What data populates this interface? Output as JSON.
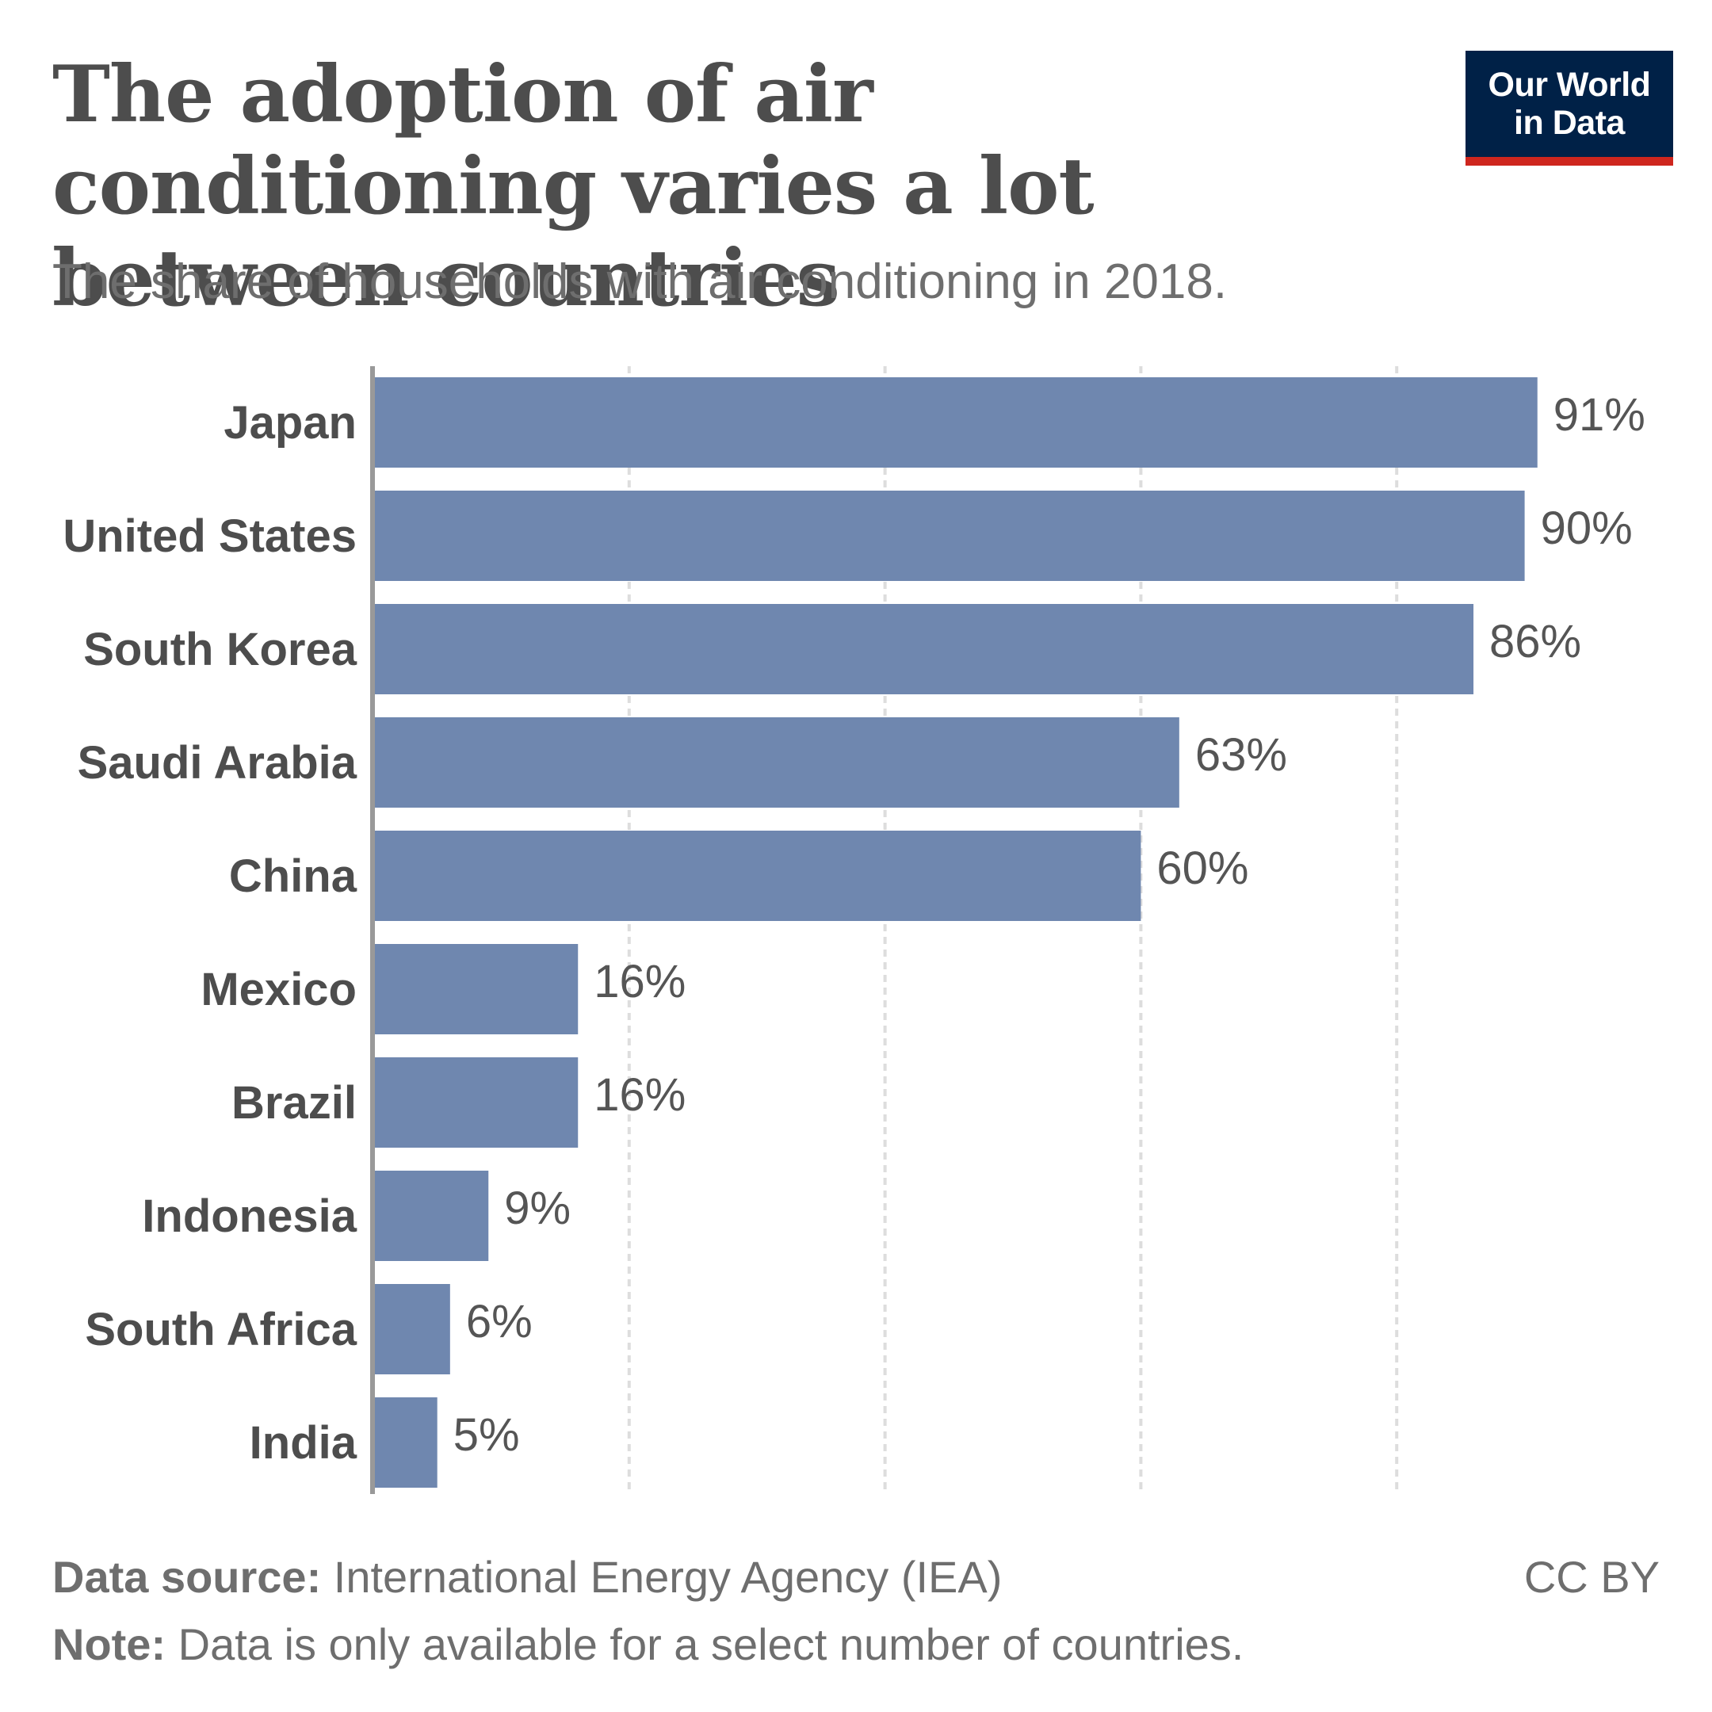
{
  "header": {
    "title": "The adoption of air conditioning varies a lot between countries",
    "subtitle": "The share of households with air conditioning in 2018."
  },
  "logo": {
    "text": "Our World\nin Data",
    "background_color": "#002147",
    "stripe_color": "#ce261e"
  },
  "chart_data": {
    "type": "bar",
    "orientation": "horizontal",
    "categories": [
      "Japan",
      "United States",
      "South Korea",
      "Saudi Arabia",
      "China",
      "Mexico",
      "Brazil",
      "Indonesia",
      "South Africa",
      "India"
    ],
    "values": [
      91,
      90,
      86,
      63,
      60,
      16,
      16,
      9,
      6,
      5
    ],
    "value_labels": [
      "91%",
      "90%",
      "86%",
      "63%",
      "60%",
      "16%",
      "16%",
      "9%",
      "6%",
      "5%"
    ],
    "unit": "%",
    "xlim": [
      0,
      100
    ],
    "grid": true,
    "bar_color": "#6f87af"
  },
  "footer": {
    "source_label": "Data source:",
    "source_text": " International Energy Agency (IEA)",
    "note_label": "Note:",
    "note_text": " Data is only available for a select number of countries.",
    "license": "CC BY"
  }
}
